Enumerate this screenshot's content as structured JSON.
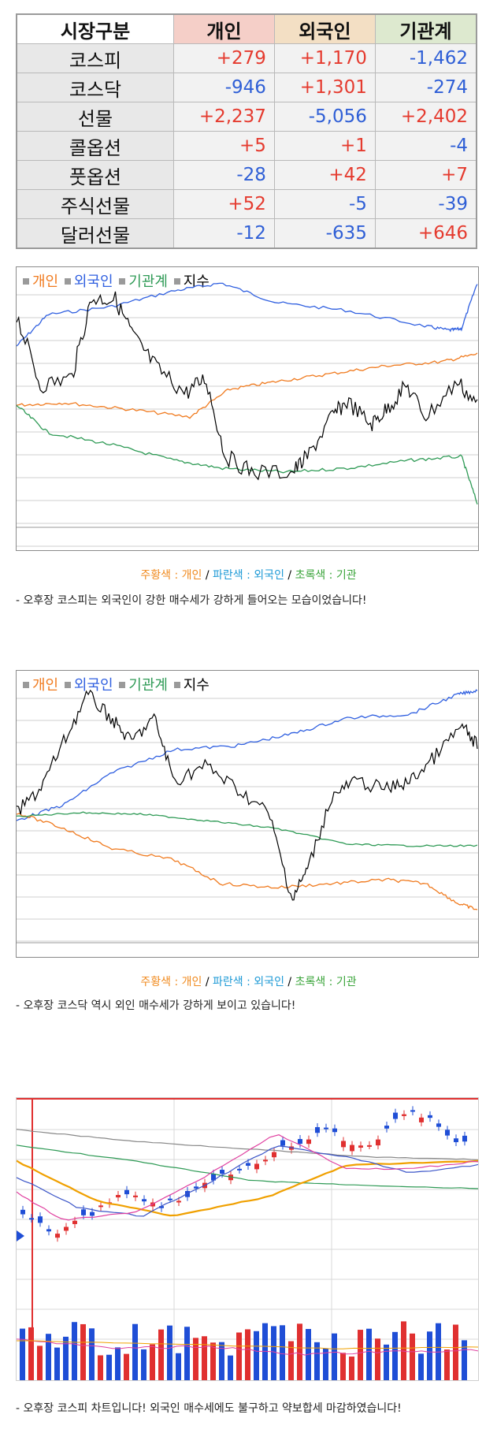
{
  "table": {
    "headers": [
      "시장구분",
      "개인",
      "외국인",
      "기관계"
    ],
    "header_colors": [
      "#ffffff",
      "#f5cfc8",
      "#f3dfc4",
      "#dde9cf"
    ],
    "rows": [
      {
        "label": "코스피",
        "values": [
          "+279",
          "+1,170",
          "-1,462"
        ]
      },
      {
        "label": "코스닥",
        "values": [
          "-946",
          "+1,301",
          "-274"
        ]
      },
      {
        "label": "선물",
        "values": [
          "+2,237",
          "-5,056",
          "+2,402"
        ]
      },
      {
        "label": "콜옵션",
        "values": [
          "+5",
          "+1",
          "-4"
        ]
      },
      {
        "label": "풋옵션",
        "values": [
          "-28",
          "+42",
          "+7"
        ]
      },
      {
        "label": "주식선물",
        "values": [
          "+52",
          "-5",
          "-39"
        ]
      },
      {
        "label": "달러선물",
        "values": [
          "-12",
          "-635",
          "+646"
        ]
      }
    ]
  },
  "chart1": {
    "legend": {
      "individual": "개인",
      "foreign": "외국인",
      "institution": "기관계",
      "index": "지수"
    },
    "colors": {
      "individual": "#f07a1e",
      "foreign": "#2f5fe0",
      "institution": "#2e9a55",
      "index": "#000000"
    }
  },
  "caption1": {
    "individual": "주황색 : 개인",
    "sep1": " / ",
    "foreign": "파란색 : 외국인",
    "sep2": " / ",
    "institution": "초록색 : 기관"
  },
  "note1": "- 오후장 코스피는 외국인이 강한 매수세가 강하게 들어오는 모습이었습니다!",
  "chart2": {
    "legend": {
      "individual": "개인",
      "foreign": "외국인",
      "institution": "기관계",
      "index": "지수"
    }
  },
  "caption2": {
    "individual": "주황색 : 개인",
    "sep1": " / ",
    "foreign": "파란색 : 외국인",
    "sep2": " / ",
    "institution": "초록색 : 기관"
  },
  "note2": "-  오후장 코스닥 역시 외인 매수세가 강하게 보이고 있습니다!",
  "note3": "- 오후장 코스피 차트입니다! 외국인 매수세에도 불구하고 약보합세 마감하였습니다!"
}
